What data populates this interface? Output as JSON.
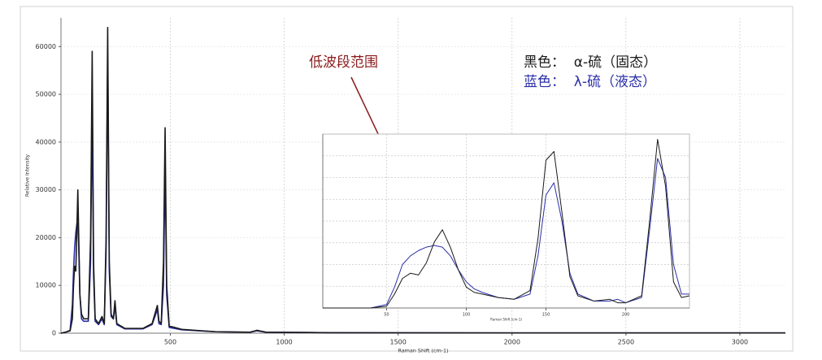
{
  "chart_data": [
    {
      "type": "line",
      "x_label": "Raman Shift (cm-1)",
      "y_label": "Relative Intensity",
      "xlim": [
        20,
        3200
      ],
      "ylim": [
        0,
        66000
      ],
      "xticks": [
        500,
        1000,
        1500,
        2000,
        2500,
        3000
      ],
      "yticks": [
        0,
        10000,
        20000,
        30000,
        40000,
        50000,
        60000
      ],
      "grid": true,
      "annotation": "低波段范围",
      "x": [
        20,
        40,
        60,
        70,
        75,
        80,
        85,
        90,
        94,
        98,
        103,
        110,
        120,
        140,
        150,
        157,
        163,
        170,
        185,
        200,
        210,
        218,
        225,
        232,
        240,
        250,
        257,
        265,
        300,
        380,
        420,
        435,
        443,
        450,
        460,
        470,
        477,
        484,
        495,
        550,
        700,
        850,
        880,
        920,
        1200,
        2000,
        3200
      ],
      "series": [
        {
          "name": "黑色：  α-硫（固态）",
          "color": "#1a1a1a",
          "values": [
            0,
            200,
            500,
            3000,
            10000,
            14000,
            13000,
            22000,
            30000,
            20000,
            8000,
            4000,
            3000,
            3000,
            20000,
            59000,
            15000,
            3000,
            2000,
            3500,
            2000,
            20000,
            64000,
            15000,
            4000,
            3000,
            6800,
            2000,
            1000,
            1000,
            2000,
            4500,
            5800,
            2500,
            2000,
            15000,
            43000,
            10000,
            1500,
            800,
            300,
            200,
            600,
            200,
            100,
            50,
            50
          ]
        },
        {
          "name": "蓝色：  λ-硫（液态）",
          "color": "#2b2fa8",
          "values": [
            0,
            200,
            600,
            6000,
            13000,
            18000,
            21000,
            23000,
            23000,
            18000,
            8000,
            3000,
            2500,
            2500,
            15000,
            47500,
            12000,
            2500,
            1800,
            3000,
            1800,
            17000,
            57500,
            13000,
            3500,
            3000,
            5500,
            1800,
            900,
            900,
            1800,
            3800,
            5000,
            2000,
            1800,
            10000,
            36000,
            8000,
            1200,
            700,
            300,
            200,
            500,
            200,
            100,
            50,
            50
          ]
        }
      ]
    },
    {
      "type": "line",
      "x_label": "Raman Shift (cm-1)",
      "xlim": [
        10,
        240
      ],
      "ylim": [
        0,
        100
      ],
      "xticks": [
        50,
        100,
        150,
        200
      ],
      "grid": true,
      "x": [
        10,
        40,
        50,
        55,
        60,
        65,
        70,
        75,
        80,
        85,
        90,
        95,
        100,
        105,
        110,
        120,
        130,
        140,
        145,
        150,
        155,
        160,
        165,
        170,
        180,
        190,
        195,
        200,
        210,
        215,
        220,
        225,
        230,
        235,
        240
      ],
      "series": [
        {
          "color": "#1a1a1a",
          "values": [
            0,
            0,
            1,
            8,
            17,
            20,
            19,
            26,
            38,
            45,
            35,
            22,
            12,
            9,
            8,
            6,
            5,
            10,
            40,
            85,
            90,
            55,
            18,
            7,
            4,
            5,
            3,
            3,
            7,
            50,
            97,
            70,
            15,
            6,
            7
          ]
        },
        {
          "color": "#2b2fa8",
          "values": [
            0,
            0,
            2,
            12,
            25,
            30,
            33,
            35,
            36,
            35,
            30,
            22,
            15,
            11,
            9,
            6,
            5,
            8,
            30,
            65,
            72,
            50,
            20,
            8,
            4,
            4,
            5,
            3,
            6,
            45,
            86,
            75,
            25,
            8,
            8
          ]
        }
      ]
    }
  ]
}
